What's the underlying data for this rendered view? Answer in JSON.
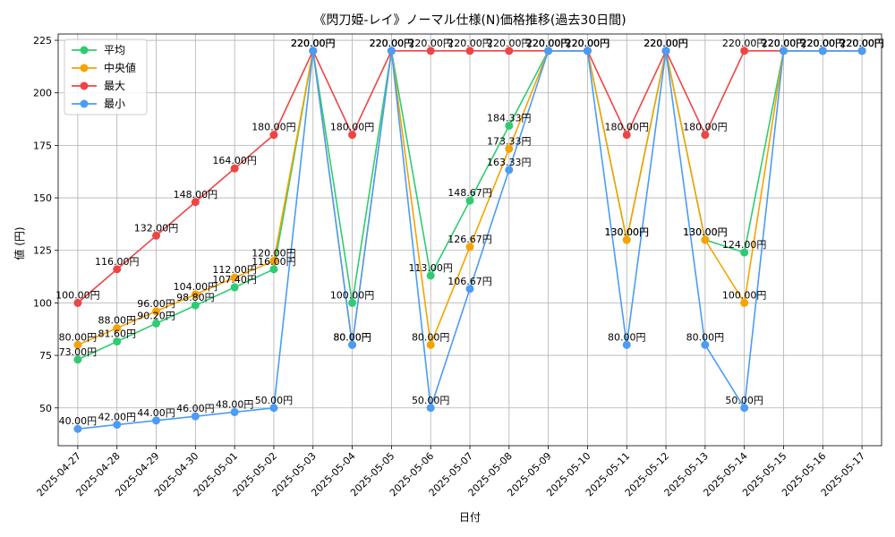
{
  "chart_data": {
    "type": "line",
    "title": "《閃刀姫-レイ》ノーマル仕様(N)価格推移(過去30日間)",
    "xlabel": "日付",
    "ylabel": "値 (円)",
    "ylim": [
      32,
      228
    ],
    "yticks": [
      50,
      75,
      100,
      125,
      150,
      175,
      200,
      225
    ],
    "grid": true,
    "legend_position": "top-left",
    "label_suffix": "円",
    "categories": [
      "2025-04-27",
      "2025-04-28",
      "2025-04-29",
      "2025-04-30",
      "2025-05-01",
      "2025-05-02",
      "2025-05-03",
      "2025-05-04",
      "2025-05-05",
      "2025-05-06",
      "2025-05-07",
      "2025-05-08",
      "2025-05-09",
      "2025-05-10",
      "2025-05-11",
      "2025-05-12",
      "2025-05-13",
      "2025-05-14",
      "2025-05-15",
      "2025-05-16",
      "2025-05-17"
    ],
    "series": [
      {
        "name": "平均",
        "color": "#2ecc71",
        "values": [
          73,
          81.6,
          90.2,
          98.8,
          107.4,
          116,
          220,
          100,
          220,
          113,
          148.67,
          184.33,
          220,
          220,
          130,
          220,
          130,
          124,
          220,
          220,
          220
        ]
      },
      {
        "name": "中央値",
        "color": "#f5a300",
        "values": [
          80,
          88,
          96,
          104,
          112,
          120,
          220,
          80,
          220,
          80,
          126.67,
          173.33,
          220,
          220,
          130,
          220,
          130,
          100,
          220,
          220,
          220
        ]
      },
      {
        "name": "最大",
        "color": "#ef4444",
        "values": [
          100,
          116,
          132,
          148,
          164,
          180,
          220,
          180,
          220,
          220,
          220,
          220,
          220,
          220,
          180,
          220,
          180,
          220,
          220,
          220,
          220
        ]
      },
      {
        "name": "最小",
        "color": "#4a9cf5",
        "values": [
          40,
          42,
          44,
          46,
          48,
          50,
          220,
          80,
          220,
          50,
          106.67,
          163.33,
          220,
          220,
          80,
          220,
          80,
          50,
          220,
          220,
          220
        ]
      }
    ]
  }
}
